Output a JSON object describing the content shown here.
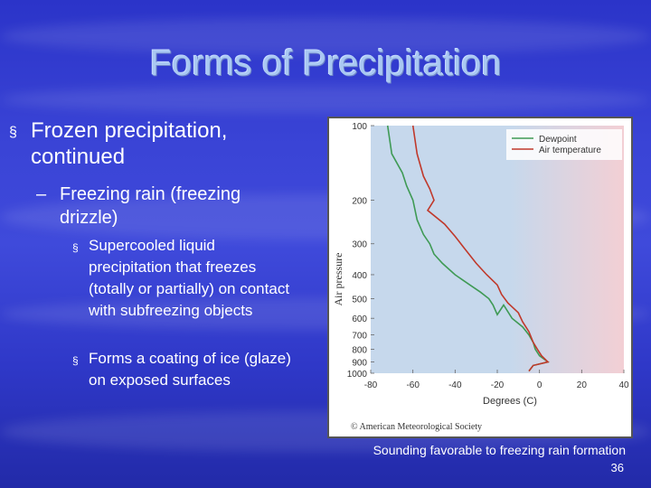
{
  "slide": {
    "title": "Forms of Precipitation",
    "bullets": {
      "level1": "Frozen precipitation, continued",
      "level2": "Freezing rain (freezing drizzle)",
      "level3": [
        "Supercooled liquid precipitation that freezes (totally or partially) on contact  with subfreezing objects",
        "Forms a coating of ice (glaze) on exposed surfaces"
      ]
    },
    "caption": "Sounding favorable to freezing rain formation",
    "slide_number": "36",
    "bullet_marks": {
      "square": "§",
      "dash": "–"
    }
  },
  "chart_data": {
    "type": "line",
    "xlabel": "Degrees (C)",
    "ylabel": "Air pressure",
    "xlim": [
      -80,
      40
    ],
    "ylim": [
      100,
      1000
    ],
    "y_log_scale": true,
    "y_inverted": true,
    "x_ticks": [
      "-80",
      "-60",
      "-40",
      "-20",
      "0",
      "20",
      "40"
    ],
    "y_ticks": [
      "100",
      "200",
      "300",
      "400",
      "500",
      "600",
      "700",
      "800",
      "900",
      "1000"
    ],
    "legend_position": "top-right",
    "copyright": "© American Meteorological Society",
    "background_colors": {
      "cold": "#c6d8ec",
      "warm": "#f3cfd4"
    },
    "series": [
      {
        "name": "Dewpoint",
        "color": "#3f9a55",
        "points": [
          [
            -72,
            100
          ],
          [
            -70,
            130
          ],
          [
            -65,
            155
          ],
          [
            -63,
            175
          ],
          [
            -60,
            200
          ],
          [
            -58,
            240
          ],
          [
            -55,
            275
          ],
          [
            -52,
            300
          ],
          [
            -50,
            330
          ],
          [
            -46,
            360
          ],
          [
            -40,
            400
          ],
          [
            -33,
            440
          ],
          [
            -28,
            470
          ],
          [
            -24,
            500
          ],
          [
            -22,
            530
          ],
          [
            -20,
            580
          ],
          [
            -17,
            530
          ],
          [
            -13,
            600
          ],
          [
            -8,
            650
          ],
          [
            -5,
            700
          ],
          [
            -3,
            750
          ],
          [
            -2,
            800
          ],
          [
            0,
            850
          ],
          [
            4,
            900
          ],
          [
            -3,
            930
          ],
          [
            -5,
            980
          ]
        ]
      },
      {
        "name": "Air temperature",
        "color": "#c0392b",
        "points": [
          [
            -60,
            100
          ],
          [
            -58,
            130
          ],
          [
            -55,
            160
          ],
          [
            -52,
            180
          ],
          [
            -50,
            200
          ],
          [
            -53,
            220
          ],
          [
            -45,
            250
          ],
          [
            -40,
            280
          ],
          [
            -36,
            310
          ],
          [
            -30,
            360
          ],
          [
            -25,
            400
          ],
          [
            -20,
            440
          ],
          [
            -18,
            480
          ],
          [
            -15,
            520
          ],
          [
            -10,
            570
          ],
          [
            -8,
            620
          ],
          [
            -5,
            680
          ],
          [
            -3,
            750
          ],
          [
            -1,
            800
          ],
          [
            1,
            850
          ],
          [
            4,
            900
          ],
          [
            -3,
            930
          ],
          [
            -5,
            980
          ]
        ]
      }
    ]
  }
}
